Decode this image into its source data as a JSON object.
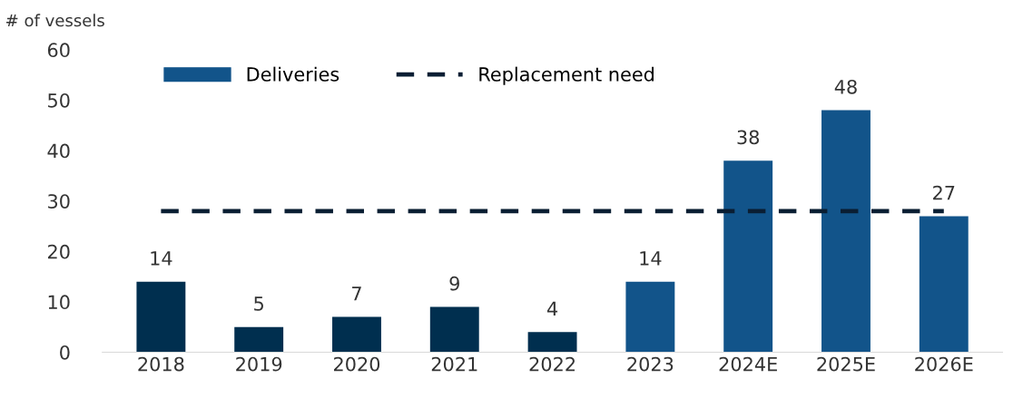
{
  "chart_data": {
    "type": "bar",
    "ylabel": "# of vessels",
    "categories": [
      "2018",
      "2019",
      "2020",
      "2021",
      "2022",
      "2023",
      "2024E",
      "2025E",
      "2026E"
    ],
    "ylim": [
      0,
      60
    ],
    "yticks": [
      0,
      10,
      20,
      30,
      40,
      50,
      60
    ],
    "grid": false,
    "legend": "top left",
    "series": [
      {
        "name": "Deliveries",
        "color": "#12548a",
        "value_labels": [
          "14",
          "5",
          "7",
          "9",
          "4",
          "14",
          "38",
          "48",
          "27"
        ],
        "colors": [
          "#002f4f",
          "#002f4f",
          "#002f4f",
          "#002f4f",
          "#002f4f",
          "#12548a",
          "#12548a",
          "#12548a",
          "#12548a"
        ],
        "values": [
          14,
          5,
          7,
          9,
          4,
          14,
          38,
          48,
          27
        ]
      },
      {
        "name": "Replacement need",
        "type": "line",
        "color": "#0a1e33",
        "line_style": "dashed",
        "marker": "none",
        "values": [
          28,
          28,
          28,
          28,
          28,
          28,
          28,
          28,
          28
        ]
      }
    ]
  }
}
